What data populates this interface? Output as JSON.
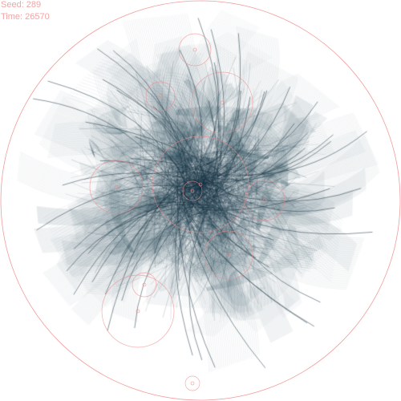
{
  "hud": {
    "seed_label": "Seed: 289",
    "time_label": "Time: 26570"
  },
  "palette": {
    "background": "#ffffff",
    "strand_color": "#1f3f52",
    "circle_color": "#f08a8a",
    "hud_color": "#f3a3a3"
  },
  "simulation": {
    "seed": 289,
    "time": 26570
  }
}
